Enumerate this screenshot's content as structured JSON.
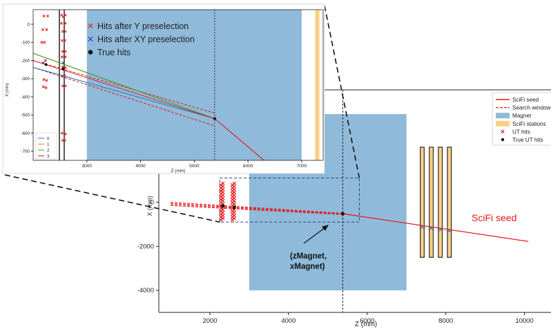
{
  "colors": {
    "magnet": "#8fbad9",
    "scifi_station": "#fbd184",
    "scifi_edge": "#2b2b2b",
    "seed": "#e41a1c",
    "hit": "#e41a1c",
    "true_hit": "#111111",
    "xy_hit": "#1f3fd1",
    "series_0": "#1f77b4",
    "series_1": "#ff7f0e",
    "series_2": "#2ca02c",
    "series_3": "#d62728"
  },
  "chart_data": [
    {
      "id": "main",
      "type": "scatter",
      "xlabel": "Z (mm)",
      "ylabel": "X (mm)",
      "xlim": [
        700,
        10500
      ],
      "ylim": [
        -5000,
        5100
      ],
      "xticks": [
        2000,
        4000,
        6000,
        8000,
        10000
      ],
      "yticks": [
        -4000,
        -2000,
        0
      ],
      "grid": false,
      "legend_position": "top-right",
      "legend": [
        {
          "label": "SciFi seed",
          "kind": "solid-line",
          "color": "#e41a1c"
        },
        {
          "label": "Search window",
          "kind": "dashed-line",
          "color": "#e41a1c"
        },
        {
          "label": "Magnet",
          "kind": "patch",
          "color": "#8fbad9"
        },
        {
          "label": "SciFi stations",
          "kind": "patch",
          "color": "#fbd184"
        },
        {
          "label": "UT hits",
          "kind": "x-marker",
          "color": "#e41a1c"
        },
        {
          "label": "True UT hits",
          "kind": "dot-marker",
          "color": "#111111"
        }
      ],
      "magnet_region": {
        "z": [
          3000,
          7000
        ],
        "x": [
          -4000,
          4000
        ]
      },
      "scifi_stations": [
        {
          "z": [
            7350,
            7450
          ],
          "x": [
            -2500,
            2500
          ]
        },
        {
          "z": [
            7580,
            7680
          ],
          "x": [
            -2500,
            2500
          ]
        },
        {
          "z": [
            7810,
            7910
          ],
          "x": [
            -2500,
            2500
          ]
        },
        {
          "z": [
            8040,
            8140
          ],
          "x": [
            -2500,
            2500
          ]
        }
      ],
      "z_magnet": 5380,
      "seed_line": [
        [
          5380,
          -520
        ],
        [
          10100,
          -1780
        ]
      ],
      "seed_hits": [
        [
          7400,
          -1120
        ],
        [
          7630,
          -1180
        ],
        [
          7860,
          -1230
        ],
        [
          8090,
          -1290
        ]
      ],
      "true_ut_hits": [
        [
          2330,
          -170
        ],
        [
          2620,
          -230
        ],
        [
          5380,
          -520
        ]
      ],
      "search_window_lines": [
        [
          [
            1000,
            0
          ],
          [
            5380,
            -500
          ]
        ],
        [
          [
            1000,
            -50
          ],
          [
            5380,
            -520
          ]
        ],
        [
          [
            1000,
            -100
          ],
          [
            5380,
            -540
          ]
        ],
        [
          [
            1000,
            -150
          ],
          [
            5380,
            -560
          ]
        ]
      ],
      "ut_hit_columns": [
        {
          "z": [
            2280,
            2330
          ],
          "x_range": [
            -800,
            850
          ],
          "count": 26
        },
        {
          "z": [
            2570,
            2620
          ],
          "x_range": [
            -800,
            850
          ],
          "count": 26
        }
      ],
      "zoom_box": {
        "z": [
          2250,
          5800
        ],
        "x": [
          -900,
          1100
        ]
      },
      "annotations": [
        {
          "text": "SciFi seed",
          "color": "#e41a1c"
        },
        {
          "lines": [
            "(zMagnet,",
            "xMagnet)"
          ],
          "color": "#111111"
        }
      ]
    },
    {
      "id": "inset",
      "type": "line",
      "xlabel": "Z (mm)",
      "ylabel": "X (mm)",
      "xlim": [
        2000,
        7400
      ],
      "ylim": [
        -750,
        80
      ],
      "xticks": [
        3000,
        4000,
        5000,
        6000,
        7000
      ],
      "yticks": [
        0,
        -100,
        -200,
        -300,
        -400,
        -500,
        -600,
        -700
      ],
      "grid": false,
      "legend_position": "lower-left",
      "magnet_region": {
        "z": [
          3000,
          7000
        ]
      },
      "scifi_station_band": {
        "z": [
          7250,
          7330
        ]
      },
      "z_magnet": 5380,
      "x_magnet": -520,
      "series": [
        {
          "name": "0",
          "color": "#1f77b4",
          "points": [
            [
              2000,
              -238
            ],
            [
              5380,
              -520
            ]
          ]
        },
        {
          "name": "1",
          "color": "#ff7f0e",
          "points": [
            [
              2000,
              -160
            ],
            [
              5380,
              -520
            ]
          ]
        },
        {
          "name": "2",
          "color": "#2ca02c",
          "points": [
            [
              2000,
              -160
            ],
            [
              5380,
              -520
            ]
          ]
        },
        {
          "name": "3",
          "color": "#d62728",
          "points": [
            [
              2000,
              -200
            ],
            [
              5380,
              -520
            ]
          ]
        }
      ],
      "seed_line": [
        [
          5380,
          -520
        ],
        [
          6300,
          -750
        ]
      ],
      "search_window": [
        [
          [
            2000,
            -200
          ],
          [
            5380,
            -490
          ]
        ],
        [
          [
            2000,
            -238
          ],
          [
            5380,
            -560
          ]
        ]
      ],
      "true_hits": [
        [
          2240,
          -222
        ],
        [
          2560,
          -247
        ],
        [
          5380,
          -520
        ]
      ],
      "xy_preselected_hits": [
        [
          2190,
          -213
        ],
        [
          2560,
          -213
        ]
      ],
      "y_preselected_hits": [
        [
          2200,
          45
        ],
        [
          2270,
          45
        ],
        [
          2180,
          -30
        ],
        [
          2250,
          -30
        ],
        [
          2210,
          -100
        ],
        [
          2160,
          -100
        ],
        [
          2230,
          -200
        ],
        [
          2200,
          -305
        ],
        [
          2250,
          -310
        ],
        [
          2190,
          -345
        ],
        [
          2240,
          -350
        ],
        [
          2530,
          50
        ],
        [
          2600,
          50
        ],
        [
          2560,
          40
        ],
        [
          2530,
          5
        ],
        [
          2600,
          5
        ],
        [
          2550,
          -40
        ],
        [
          2600,
          -40
        ],
        [
          2540,
          -90
        ],
        [
          2590,
          -90
        ],
        [
          2550,
          -150
        ],
        [
          2600,
          -150
        ],
        [
          2540,
          -180
        ],
        [
          2600,
          -180
        ],
        [
          2550,
          -235
        ],
        [
          2600,
          -240
        ],
        [
          2540,
          -285
        ],
        [
          2590,
          -285
        ],
        [
          2550,
          -340
        ],
        [
          2600,
          -340
        ],
        [
          2540,
          -600
        ],
        [
          2600,
          -605
        ],
        [
          2550,
          -640
        ],
        [
          2590,
          -640
        ]
      ],
      "legend_texts": [
        {
          "text": "Hits after Y preselection",
          "color": "#e41a1c",
          "marker": "x"
        },
        {
          "text": "Hits after XY preselection",
          "color": "#1f3fd1",
          "marker": "x"
        },
        {
          "text": "True hits",
          "color": "#111111",
          "marker": "dot"
        }
      ]
    }
  ]
}
